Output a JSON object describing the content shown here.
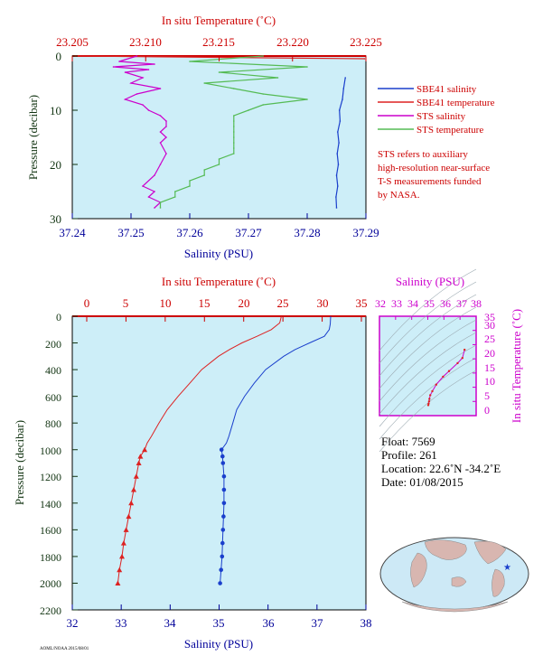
{
  "colors": {
    "panel_bg": "#cdeef8",
    "temp_axis": "#cc0000",
    "sal_axis": "#000099",
    "pres_axis": "#113311",
    "sbe_sal": "#1a3fcc",
    "sbe_temp": "#dd2222",
    "sts_sal": "#cc00cc",
    "sts_temp": "#55bb55",
    "sts_temp_pink": "#f08a8a",
    "ts_axis": "#cc00cc",
    "map_land": "#d8b6b0",
    "map_ocean": "#cde9f6",
    "marker": "#1a3fcc"
  },
  "top_chart": {
    "temp_axis_label": "In situ Temperature (˚C)",
    "temp_ticks": [
      "23.205",
      "23.210",
      "23.215",
      "23.220",
      "23.225"
    ],
    "sal_axis_label": "Salinity (PSU)",
    "sal_ticks": [
      "37.24",
      "37.25",
      "37.26",
      "37.27",
      "37.28",
      "37.29"
    ],
    "pres_axis_label": "Pressure (decibar)",
    "pres_ticks": [
      "0",
      "10",
      "20",
      "30"
    ],
    "legend": [
      {
        "label": "SBE41 salinity",
        "color": "#1a3fcc"
      },
      {
        "label": "SBE41 temperature",
        "color": "#dd2222"
      },
      {
        "label": "STS salinity",
        "color": "#cc00cc"
      },
      {
        "label": "STS temperature",
        "color": "#55bb55"
      }
    ],
    "note": [
      "STS refers to auxiliary",
      "high-resolution near-surface",
      "T-S measurements funded",
      "by NASA."
    ]
  },
  "main_chart": {
    "temp_axis_label": "In situ Temperature (˚C)",
    "temp_ticks": [
      "0",
      "5",
      "10",
      "15",
      "20",
      "25",
      "30",
      "35"
    ],
    "sal_axis_label": "Salinity (PSU)",
    "sal_ticks": [
      "32",
      "33",
      "34",
      "35",
      "36",
      "37",
      "38"
    ],
    "pres_axis_label": "Pressure (decibar)",
    "pres_ticks": [
      "0",
      "200",
      "400",
      "600",
      "800",
      "1000",
      "1200",
      "1400",
      "1600",
      "1800",
      "2000",
      "2200"
    ]
  },
  "ts_diagram": {
    "sal_axis_label": "Salinity (PSU)",
    "sal_ticks": [
      "32",
      "33",
      "34",
      "35",
      "36",
      "37",
      "38"
    ],
    "temp_axis_label": "In situ Temperature (˚C)",
    "temp_ticks": [
      "0",
      "5",
      "10",
      "15",
      "20",
      "25",
      "30",
      "35"
    ]
  },
  "float_info": {
    "float": "Float:  7569",
    "profile": "Profile:  261",
    "location": "Location:  22.6˚N  -34.2˚E",
    "date": "Date:  01/08/2015"
  },
  "footer_code": "AOML/NOAA 2015/08/01",
  "chart_data": [
    {
      "type": "line",
      "title": "",
      "x_primary": {
        "label": "Salinity (PSU)",
        "range": [
          37.24,
          37.29
        ]
      },
      "x_secondary": {
        "label": "In situ Temperature (˚C)",
        "range": [
          23.205,
          23.225
        ]
      },
      "y": {
        "label": "Pressure (decibar)",
        "range": [
          0,
          30
        ],
        "inverted": true
      },
      "grid": false,
      "legend_position": "right",
      "series": [
        {
          "name": "SBE41 salinity",
          "axis": "salinity",
          "pressure": [
            4,
            6,
            8,
            10,
            12,
            14,
            16,
            18,
            20,
            22,
            24,
            26,
            28
          ],
          "values": [
            37.2865,
            37.2862,
            37.286,
            37.2855,
            37.2856,
            37.2852,
            37.2854,
            37.2851,
            37.2853,
            37.285,
            37.2852,
            37.2849,
            37.285
          ]
        },
        {
          "name": "SBE41 temperature",
          "axis": "temperature",
          "pressure": [
            0,
            0.5
          ],
          "values": [
            23.2052,
            23.2249
          ]
        },
        {
          "name": "STS salinity",
          "axis": "salinity",
          "pressure": [
            0,
            1,
            1.5,
            2,
            2.5,
            3,
            4,
            5,
            6,
            7,
            8,
            9,
            10,
            11,
            12,
            13,
            14,
            15,
            16,
            18,
            20,
            22,
            24,
            25,
            26,
            27,
            28
          ],
          "values": [
            37.251,
            37.248,
            37.254,
            37.247,
            37.253,
            37.249,
            37.252,
            37.25,
            37.255,
            37.251,
            37.249,
            37.252,
            37.253,
            37.255,
            37.256,
            37.256,
            37.255,
            37.256,
            37.255,
            37.256,
            37.255,
            37.254,
            37.252,
            37.254,
            37.253,
            37.255,
            37.254
          ]
        },
        {
          "name": "STS temperature",
          "axis": "temperature",
          "pressure": [
            0,
            1,
            2,
            3,
            4,
            5,
            6,
            7,
            8,
            9,
            10,
            11,
            12,
            13,
            14,
            15,
            16,
            17,
            18,
            19,
            20,
            21,
            22,
            23,
            24,
            25,
            26,
            27,
            28
          ],
          "values": [
            23.218,
            23.213,
            23.221,
            23.215,
            23.219,
            23.214,
            23.216,
            23.218,
            23.221,
            23.218,
            23.217,
            23.216,
            23.216,
            23.216,
            23.216,
            23.216,
            23.216,
            23.216,
            23.216,
            23.215,
            23.215,
            23.214,
            23.214,
            23.213,
            23.213,
            23.212,
            23.212,
            23.211,
            23.211
          ]
        }
      ]
    },
    {
      "type": "line",
      "title": "",
      "x_primary": {
        "label": "Salinity (PSU)",
        "range": [
          32,
          38
        ]
      },
      "x_secondary": {
        "label": "In situ Temperature (˚C)",
        "range": [
          0,
          35
        ]
      },
      "y": {
        "label": "Pressure (decibar)",
        "range": [
          0,
          2200
        ],
        "inverted": true
      },
      "grid": false,
      "series": [
        {
          "name": "",
          "axis": "salinity",
          "pressure": [
            0,
            60,
            100,
            150,
            200,
            250,
            300,
            400,
            500,
            600,
            700,
            800,
            900,
            950,
            1000,
            1050,
            1100,
            1200,
            1300,
            1400,
            1500,
            1600,
            1700,
            1800,
            1900,
            2000
          ],
          "values": [
            37.28,
            37.27,
            37.25,
            37.15,
            36.85,
            36.55,
            36.32,
            35.95,
            35.72,
            35.52,
            35.36,
            35.28,
            35.2,
            35.15,
            35.05,
            35.07,
            35.08,
            35.1,
            35.1,
            35.1,
            35.09,
            35.08,
            35.07,
            35.06,
            35.04,
            35.02
          ]
        },
        {
          "name": "",
          "axis": "temperature",
          "pressure": [
            0,
            50,
            100,
            150,
            200,
            250,
            300,
            400,
            500,
            600,
            700,
            800,
            900,
            950,
            1000,
            1050,
            1100,
            1200,
            1300,
            1400,
            1500,
            1600,
            1700,
            1800,
            1900,
            2000
          ],
          "values": [
            23.2,
            23.0,
            22.0,
            20.3,
            18.5,
            17.0,
            15.7,
            13.7,
            12.3,
            10.9,
            9.6,
            8.6,
            7.7,
            7.2,
            6.9,
            6.4,
            6.2,
            5.9,
            5.6,
            5.3,
            5.0,
            4.7,
            4.4,
            4.2,
            3.9,
            3.7
          ]
        }
      ]
    },
    {
      "type": "scatter",
      "title": "",
      "x": {
        "label": "Salinity (PSU)",
        "range": [
          32,
          38
        ]
      },
      "y": {
        "label": "In situ Temperature (˚C)",
        "range": [
          0,
          35
        ]
      },
      "grid": false,
      "series": [
        {
          "name": "",
          "salinity": [
            37.28,
            37.15,
            36.85,
            36.32,
            35.95,
            35.52,
            35.28,
            35.15,
            35.1,
            35.08,
            35.05,
            35.03
          ],
          "temperature": [
            23.2,
            20.3,
            18.5,
            15.7,
            13.7,
            10.9,
            8.6,
            7.2,
            5.9,
            5.0,
            4.2,
            3.7
          ]
        }
      ]
    }
  ]
}
